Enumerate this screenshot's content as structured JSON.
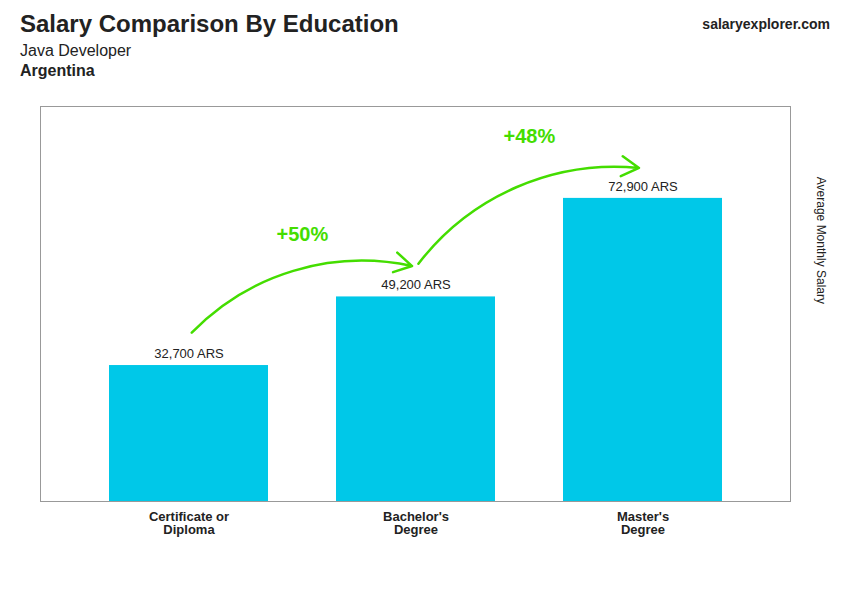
{
  "chart_data": {
    "type": "bar",
    "title": "Salary Comparison By Education",
    "subtitle": [
      "Java Developer",
      "Argentina"
    ],
    "website": [
      "salary",
      "explorer",
      ".com"
    ],
    "ylabel": "Average Monthly Salary",
    "categories": [
      "Certificate or\nDiploma",
      "Bachelor's\nDegree",
      "Master's\nDegree"
    ],
    "values": [
      32700,
      49200,
      72900
    ],
    "value_labels": [
      "32,700 ARS",
      "49,200 ARS",
      "72,900 ARS"
    ],
    "data_labels": true,
    "annotations": [
      {
        "text": "+50%",
        "color": "#44dd00"
      },
      {
        "text": "+48%",
        "color": "#44dd00"
      }
    ],
    "color": "#00c8e8",
    "ylim": [
      0,
      95000
    ],
    "yticks": [],
    "tick_labels": "x",
    "grid": false
  }
}
